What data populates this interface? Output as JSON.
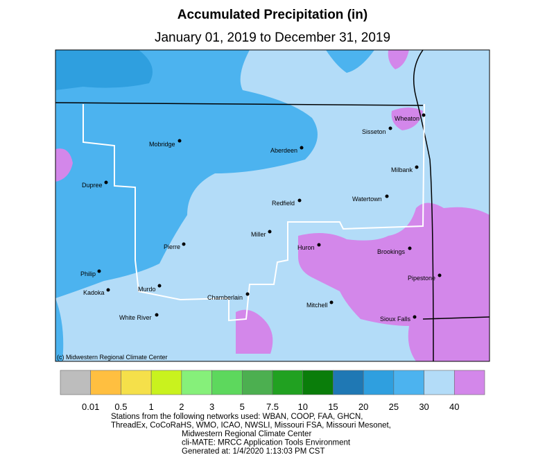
{
  "title": "Accumulated Precipitation (in)",
  "subtitle": "January 01, 2019 to December 31, 2019",
  "copyright": "(c) Midwestern Regional Climate Center",
  "cities": [
    "Mobridge",
    "Aberdeen",
    "Dupree",
    "Wheaton",
    "Sisseton",
    "Milbank",
    "Redfield",
    "Watertown",
    "Miller",
    "Pierre",
    "Huron",
    "Brookings",
    "Philip",
    "Pipestone",
    "Kadoka",
    "Murdo",
    "Chamberlain",
    "Mitchell",
    "Sioux Falls",
    "White River"
  ],
  "legend": {
    "colors": [
      "#bdbdbd",
      "#ffbf40",
      "#f5e04a",
      "#c9f21e",
      "#86f07a",
      "#5dd85d",
      "#4caf50",
      "#21a121",
      "#0a7d0a",
      "#1f78b4",
      "#2f9fdf",
      "#4cb3ef",
      "#b3dcf8",
      "#d387ea"
    ],
    "labels": [
      0.01,
      0.5,
      1,
      2,
      3,
      5,
      7.5,
      10,
      15,
      20,
      25,
      30,
      40
    ]
  },
  "credits": [
    "Stations from the following networks used: WBAN, COOP, FAA, GHCN,",
    "ThreadEx, CoCoRaHS, WMO, ICAO, NWSLI, Missouri FSA, Missouri Mesonet,",
    "Midwestern Regional Climate Center",
    "cli-MATE: MRCC Application Tools Environment",
    "Generated at: 1/4/2020 1:13:03 PM CST"
  ]
}
